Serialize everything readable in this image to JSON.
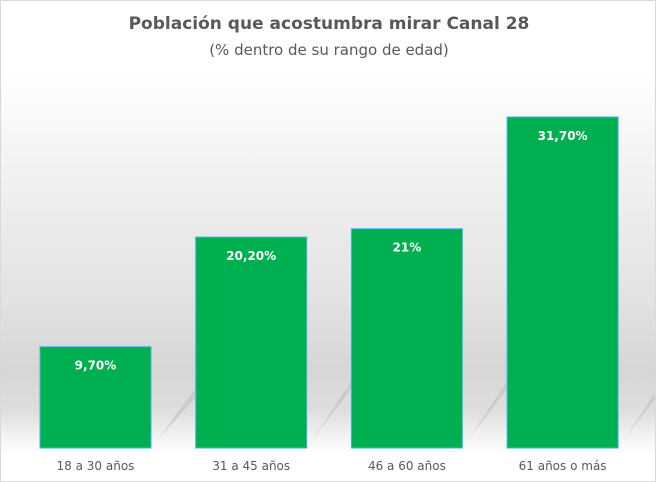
{
  "chart_data": {
    "type": "bar",
    "title": "Población que acostumbra mirar Canal 28",
    "subtitle": "(% dentro de su rango de edad)",
    "categories": [
      "18 a 30 años",
      "31 a 45 años",
      "46 a 60 años",
      "61 años o más"
    ],
    "values": [
      9.7,
      20.2,
      21,
      31.7
    ],
    "data_labels": [
      "9,70%",
      "20,20%",
      "21%",
      "31,70%"
    ],
    "xlabel": "",
    "ylabel": "",
    "ylim": [
      0,
      35
    ],
    "grid": false,
    "legend": "none",
    "colors": {
      "bar_fill": "#00b050",
      "bar_border": "#41b6e6",
      "label_text": "#ffffff",
      "axis_text": "#595959"
    }
  }
}
